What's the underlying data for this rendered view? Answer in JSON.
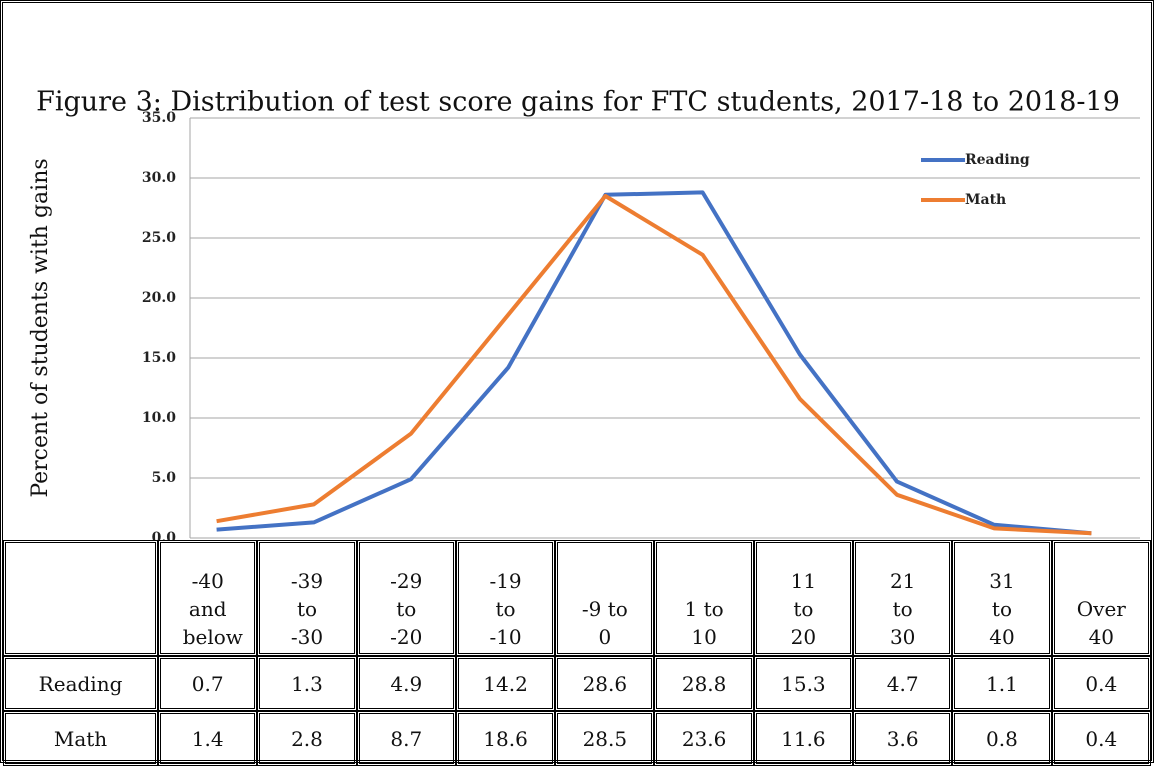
{
  "chart_data": {
    "type": "line",
    "title": "Figure 3: Distribution of test score gains for FTC students, 2017-18 to 2018-19",
    "y_label": "Percent of students with gains",
    "categories": [
      "-40 and below",
      "-39 to -30",
      "-29 to -20",
      "-19 to -10",
      "-9 to 0",
      "1 to 10",
      "11 to 20",
      "21 to 30",
      "31 to 40",
      "Over 40"
    ],
    "series": [
      {
        "name": "Reading",
        "color": "#4472c4",
        "values": [
          0.7,
          1.3,
          4.9,
          14.2,
          28.6,
          28.8,
          15.3,
          4.7,
          1.1,
          0.4
        ]
      },
      {
        "name": "Math",
        "color": "#ed7d31",
        "values": [
          1.4,
          2.8,
          8.7,
          18.6,
          28.5,
          23.6,
          11.6,
          3.6,
          0.8,
          0.4
        ]
      }
    ],
    "ylim": [
      0,
      35
    ],
    "yticks": [
      {
        "value": 0,
        "label": "0.0"
      },
      {
        "value": 5,
        "label": "5.0"
      },
      {
        "value": 10,
        "label": "10.0"
      },
      {
        "value": 15,
        "label": "15.0"
      },
      {
        "value": 20,
        "label": "20.0"
      },
      {
        "value": 25,
        "label": "25.0"
      },
      {
        "value": 30,
        "label": "30.0"
      },
      {
        "value": 35,
        "label": "35.0"
      }
    ],
    "grid": true,
    "legend": "upper right"
  }
}
